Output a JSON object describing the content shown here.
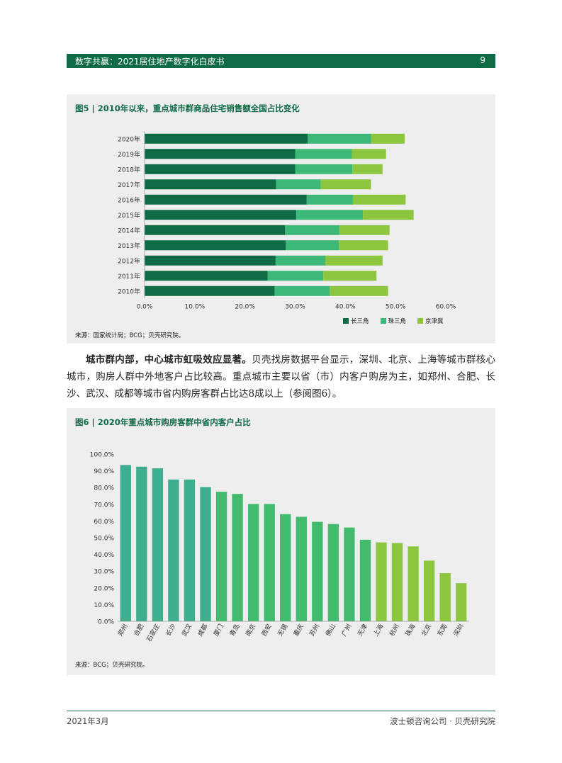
{
  "header": {
    "title": "数字共赢：2021居住地产数字化白皮书",
    "page": "9"
  },
  "figure5": {
    "title": "图5 | 2010年以来，重点城市群商品住宅销售额全国占比变化",
    "source": "来源：国家统计局；BCG；贝壳研究院。",
    "colors": [
      "#0f6b45",
      "#3cb878",
      "#8cc63f"
    ],
    "chart_data": {
      "type": "bar",
      "orientation": "horizontal",
      "stacked": true,
      "categories": [
        "2020年",
        "2019年",
        "2018年",
        "2017年",
        "2016年",
        "2015年",
        "2014年",
        "2013年",
        "2012年",
        "2011年",
        "2010年"
      ],
      "series": [
        {
          "name": "长三角",
          "values": [
            0.325,
            0.3,
            0.3,
            0.262,
            0.323,
            0.302,
            0.28,
            0.281,
            0.261,
            0.245,
            0.259
          ]
        },
        {
          "name": "珠三角",
          "values": [
            0.126,
            0.113,
            0.114,
            0.089,
            0.092,
            0.133,
            0.108,
            0.106,
            0.099,
            0.111,
            0.11
          ]
        },
        {
          "name": "京津冀",
          "values": [
            0.067,
            0.068,
            0.06,
            0.1,
            0.105,
            0.101,
            0.1,
            0.098,
            0.114,
            0.106,
            0.116
          ]
        }
      ],
      "xlim": [
        0,
        0.6
      ],
      "xticks": [
        "0.0%",
        "10.0%",
        "20.0%",
        "30.0%",
        "40.0%",
        "50.0%",
        "60.0%"
      ],
      "legend": "bottom-right",
      "grid": false
    }
  },
  "body": {
    "bold": "城市群内部，中心城市虹吸效应显著。",
    "text": "贝壳找房数据平台显示，深圳、北京、上海等城市群核心城市，购房人群中外地客户占比较高。重点城市主要以省（市）内客户购房为主，如郑州、合肥、长沙、武汉、成都等城市省内购房客群占比达8成以上（参阅图6）。"
  },
  "figure6": {
    "title": "图6 | 2020年重点城市购房客群中省内客户占比",
    "source": "来源：BCG；贝壳研究院。",
    "chart_data": {
      "type": "bar",
      "categories": [
        "郑州",
        "合肥",
        "石家庄",
        "长沙",
        "武汉",
        "成都",
        "厦门",
        "青岛",
        "南京",
        "西安",
        "无锡",
        "重庆",
        "苏州",
        "佛山",
        "广州",
        "天津",
        "上海",
        "杭州",
        "珠海",
        "北京",
        "东莞",
        "深圳"
      ],
      "values": [
        0.935,
        0.925,
        0.915,
        0.848,
        0.848,
        0.803,
        0.775,
        0.762,
        0.702,
        0.702,
        0.641,
        0.625,
        0.595,
        0.582,
        0.561,
        0.488,
        0.472,
        0.468,
        0.448,
        0.363,
        0.288,
        0.228
      ],
      "colors": [
        "#3fae8f",
        "#3fae8f",
        "#3fae8f",
        "#3fae8f",
        "#3fae8f",
        "#3fae8f",
        "#42bb6e",
        "#42bb6e",
        "#42bb6e",
        "#42bb6e",
        "#42bb6e",
        "#42bb6e",
        "#42bb6e",
        "#42bb6e",
        "#42bb6e",
        "#42bb6e",
        "#8cc63f",
        "#8cc63f",
        "#8cc63f",
        "#8cc63f",
        "#8cc63f",
        "#8cc63f"
      ],
      "ylim": [
        0,
        1.0
      ],
      "yticks": [
        "100.0%",
        "90.0%",
        "80.0%",
        "70.0%",
        "60.0%",
        "50.0%",
        "40.0%",
        "30.0%",
        "20.0%",
        "10.0%",
        "0.0%"
      ],
      "grid": false
    }
  },
  "footer": {
    "left": "2021年3月",
    "right": "波士顿咨询公司 · 贝壳研究院"
  }
}
